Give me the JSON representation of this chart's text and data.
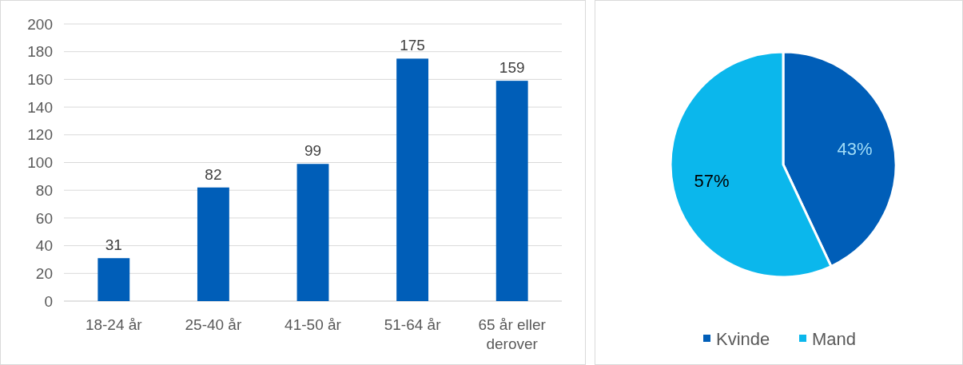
{
  "chart_data": [
    {
      "type": "bar",
      "categories": [
        "18-24 år",
        "25-40 år",
        "41-50 år",
        "51-64 år",
        "65 år eller derover"
      ],
      "values": [
        31,
        82,
        99,
        175,
        159
      ],
      "color": "#005eb8",
      "ylim": [
        0,
        200
      ],
      "yticks": [
        0,
        20,
        40,
        60,
        80,
        100,
        120,
        140,
        160,
        180,
        200
      ],
      "grid": "y",
      "data_labels": true
    },
    {
      "type": "pie",
      "categories": [
        "Kvinde",
        "Mand"
      ],
      "values": [
        43,
        57
      ],
      "value_labels": [
        "43%",
        "57%"
      ],
      "colors": [
        "#005eb8",
        "#0bb7ec"
      ],
      "legend": "bottom"
    }
  ]
}
